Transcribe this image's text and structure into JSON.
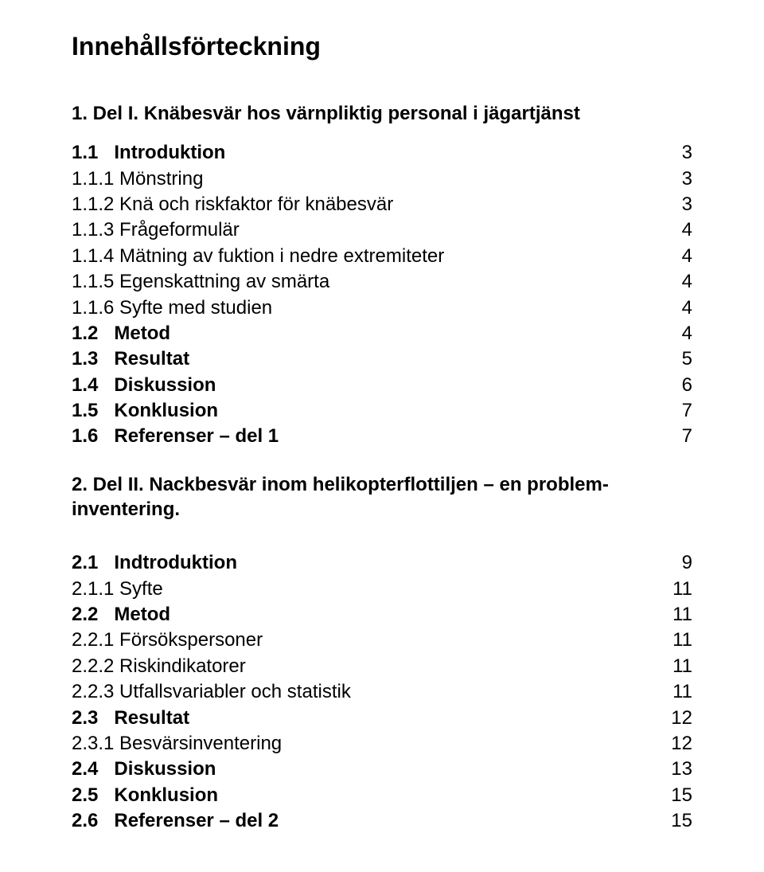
{
  "title": "Innehållsförteckning",
  "section1_heading": "1.    Del I. Knäbesvär hos värnpliktig personal i jägartjänst",
  "toc1": [
    {
      "label": "1.1   Introduktion",
      "page": "3",
      "bold": true
    },
    {
      "label": "1.1.1 Mönstring",
      "page": "3",
      "bold": false
    },
    {
      "label": "1.1.2 Knä och riskfaktor för knäbesvär",
      "page": "3",
      "bold": false
    },
    {
      "label": "1.1.3 Frågeformulär",
      "page": "4",
      "bold": false
    },
    {
      "label": "1.1.4 Mätning av fuktion i nedre extremiteter",
      "page": "4",
      "bold": false
    },
    {
      "label": "1.1.5 Egenskattning av smärta",
      "page": "4",
      "bold": false
    },
    {
      "label": "1.1.6 Syfte med studien",
      "page": "4",
      "bold": false
    },
    {
      "label": "1.2   Metod",
      "page": "4",
      "bold": true
    },
    {
      "label": "1.3   Resultat",
      "page": "5",
      "bold": true
    },
    {
      "label": "1.4   Diskussion",
      "page": "6",
      "bold": true
    },
    {
      "label": "1.5   Konklusion",
      "page": "7",
      "bold": true
    },
    {
      "label": "1.6   Referenser – del 1",
      "page": "7",
      "bold": true
    }
  ],
  "section2_heading": "2.    Del II. Nackbesvär inom helikopterflottiljen – en problem-inventering.",
  "toc2": [
    {
      "label": "2.1   Indtroduktion",
      "page": "9",
      "bold": true
    },
    {
      "label": "2.1.1 Syfte",
      "page": "11",
      "bold": false
    },
    {
      "label": "2.2   Metod",
      "page": "11",
      "bold": true
    },
    {
      "label": "2.2.1 Försökspersoner",
      "page": "11",
      "bold": false
    },
    {
      "label": "2.2.2 Riskindikatorer",
      "page": "11",
      "bold": false
    },
    {
      "label": "2.2.3 Utfallsvariabler och statistik",
      "page": "11",
      "bold": false
    },
    {
      "label": "2.3   Resultat",
      "page": "12",
      "bold": true
    },
    {
      "label": "2.3.1 Besvärsinventering",
      "page": "12",
      "bold": false
    },
    {
      "label": "2.4   Diskussion",
      "page": "13",
      "bold": true
    },
    {
      "label": "2.5   Konklusion",
      "page": "15",
      "bold": true
    },
    {
      "label": "2.6   Referenser – del 2",
      "page": "15",
      "bold": true
    }
  ]
}
